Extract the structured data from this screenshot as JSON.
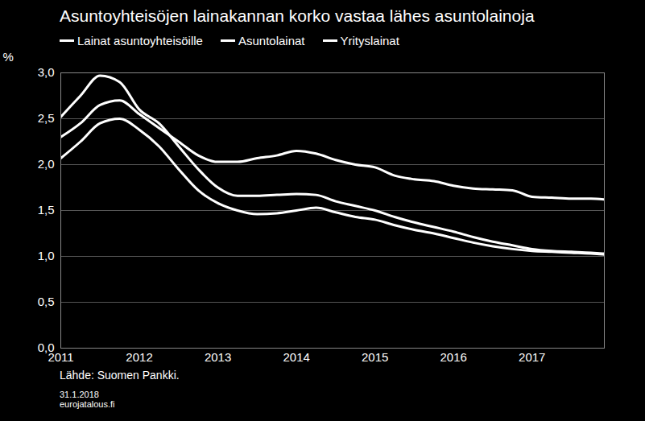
{
  "chart_data": {
    "type": "line",
    "title": "Asuntoyhteisöjen lainakannan korko vastaa lähes asuntolainoja",
    "y_label": "%",
    "source": "Lähde: Suomen Pankki.",
    "date": "31.1.2018",
    "website": "eurojatalous.fi",
    "legend": "top-left",
    "grid": true,
    "x": [
      2011.0,
      2011.25,
      2011.5,
      2011.75,
      2012.0,
      2012.25,
      2012.5,
      2012.75,
      2013.0,
      2013.25,
      2013.5,
      2013.75,
      2014.0,
      2014.25,
      2014.5,
      2014.75,
      2015.0,
      2015.25,
      2015.5,
      2015.75,
      2016.0,
      2016.25,
      2016.5,
      2016.75,
      2017.0,
      2017.25,
      2017.5,
      2017.75,
      2017.92
    ],
    "xlim": [
      2011,
      2017.92
    ],
    "xticks": [
      2011,
      2012,
      2013,
      2014,
      2015,
      2016,
      2017
    ],
    "ylim": [
      0,
      3
    ],
    "yticks": [
      {
        "value": 0,
        "label": "0,0"
      },
      {
        "value": 0.5,
        "label": "0,5"
      },
      {
        "value": 1,
        "label": "1,0"
      },
      {
        "value": 1.5,
        "label": "1,5"
      },
      {
        "value": 2,
        "label": "2,0"
      },
      {
        "value": 2.5,
        "label": "2,5"
      },
      {
        "value": 3,
        "label": "3,0"
      }
    ],
    "series": [
      {
        "name": "Lainat asuntoyhteisöille",
        "color": "#ffffff",
        "values": [
          2.52,
          2.75,
          2.97,
          2.9,
          2.6,
          2.45,
          2.2,
          1.95,
          1.75,
          1.66,
          1.66,
          1.67,
          1.68,
          1.67,
          1.6,
          1.55,
          1.5,
          1.43,
          1.37,
          1.32,
          1.27,
          1.21,
          1.16,
          1.12,
          1.08,
          1.06,
          1.05,
          1.04,
          1.03
        ]
      },
      {
        "name": "Asuntolainat",
        "color": "#ffffff",
        "values": [
          2.07,
          2.25,
          2.45,
          2.5,
          2.38,
          2.2,
          1.95,
          1.72,
          1.58,
          1.5,
          1.46,
          1.47,
          1.5,
          1.53,
          1.48,
          1.43,
          1.4,
          1.34,
          1.29,
          1.25,
          1.2,
          1.15,
          1.11,
          1.08,
          1.06,
          1.05,
          1.04,
          1.03,
          1.02
        ]
      },
      {
        "name": "Yrityslainat",
        "color": "#ffffff",
        "values": [
          2.3,
          2.45,
          2.65,
          2.7,
          2.55,
          2.4,
          2.25,
          2.1,
          2.03,
          2.03,
          2.07,
          2.1,
          2.15,
          2.12,
          2.05,
          2.0,
          1.97,
          1.88,
          1.84,
          1.82,
          1.77,
          1.74,
          1.73,
          1.72,
          1.65,
          1.64,
          1.63,
          1.63,
          1.62
        ]
      }
    ]
  }
}
